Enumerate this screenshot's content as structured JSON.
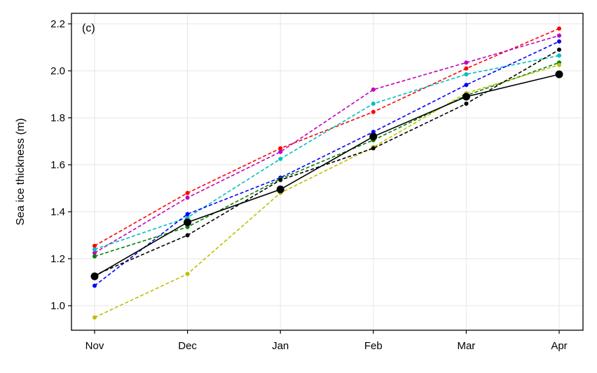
{
  "chart_data": {
    "type": "line",
    "panel_label": "(c)",
    "ylabel": "Sea ice thickness (m)",
    "xlabel": "",
    "categories": [
      "Nov",
      "Dec",
      "Jan",
      "Feb",
      "Mar",
      "Apr"
    ],
    "ylim": [
      0.9,
      2.25
    ],
    "yticks": [
      1.0,
      1.2,
      1.4,
      1.6,
      1.8,
      2.0,
      2.2
    ],
    "ytick_labels": [
      "1.0",
      "1.2",
      "1.4",
      "1.6",
      "1.8",
      "2.0",
      "2.2"
    ],
    "grid": true,
    "series": [
      {
        "color": "#ff0000",
        "style": "dashed",
        "marker": "small",
        "values": [
          1.255,
          1.48,
          1.67,
          1.825,
          2.01,
          2.18
        ]
      },
      {
        "color": "#bf00bf",
        "style": "dashed",
        "marker": "small",
        "values": [
          1.225,
          1.46,
          1.655,
          1.92,
          2.035,
          2.15
        ]
      },
      {
        "color": "#00bfbf",
        "style": "dashed",
        "marker": "small",
        "values": [
          1.24,
          1.375,
          1.625,
          1.86,
          1.985,
          2.065
        ]
      },
      {
        "color": "#0000ff",
        "style": "dashed",
        "marker": "small",
        "values": [
          1.085,
          1.39,
          1.545,
          1.74,
          1.94,
          2.125
        ]
      },
      {
        "color": "#008000",
        "style": "dashed",
        "marker": "small",
        "values": [
          1.21,
          1.335,
          1.54,
          1.705,
          1.895,
          2.035
        ]
      },
      {
        "color": "#bfbf00",
        "style": "dashed",
        "marker": "small",
        "values": [
          0.95,
          1.135,
          1.48,
          1.675,
          1.905,
          2.025
        ]
      },
      {
        "color": "#000000",
        "style": "dashed",
        "marker": "small",
        "values": [
          1.13,
          1.3,
          1.535,
          1.67,
          1.86,
          2.09
        ]
      },
      {
        "color": "#000000",
        "style": "solid",
        "marker": "large",
        "values": [
          1.125,
          1.355,
          1.495,
          1.72,
          1.89,
          1.985
        ]
      }
    ]
  }
}
